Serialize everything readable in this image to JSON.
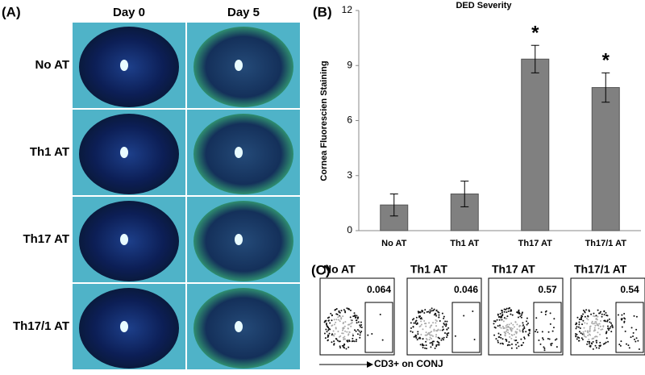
{
  "panel_a": {
    "label": "(A)",
    "columns": [
      "Day 0",
      "Day 5"
    ],
    "rows": [
      "No AT",
      "Th1 AT",
      "Th17 AT",
      "Th17/1 AT"
    ]
  },
  "chart_data": {
    "type": "bar",
    "label": "(B)",
    "title": "DED Severity",
    "y_label": "Cornea Fluorescien Staining",
    "categories": [
      "No AT",
      "Th1 AT",
      "Th17 AT",
      "Th17/1 AT"
    ],
    "values": [
      1.4,
      2.0,
      9.35,
      7.8
    ],
    "errors": [
      0.6,
      0.7,
      0.75,
      0.8
    ],
    "annotations": [
      {
        "index": 2,
        "text": "*"
      },
      {
        "index": 3,
        "text": "*"
      }
    ],
    "color": "#808080",
    "ylim": [
      0,
      12
    ],
    "yticks": [
      0,
      3,
      6,
      9,
      12
    ]
  },
  "panel_c": {
    "label": "(C)",
    "x_label": "CD3+ on CONJ",
    "plots": [
      {
        "title": "No AT",
        "gate_value": 0.064
      },
      {
        "title": "Th1 AT",
        "gate_value": 0.046
      },
      {
        "title": "Th17 AT",
        "gate_value": 0.57
      },
      {
        "title": "Th17/1 AT",
        "gate_value": 0.54
      }
    ]
  }
}
